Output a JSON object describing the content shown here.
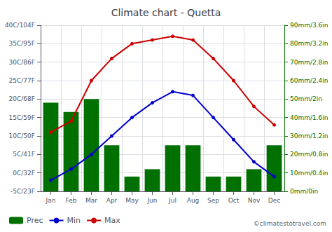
{
  "chart_data": {
    "type": "bar",
    "title": "Climate chart - Quetta",
    "categories": [
      "Jan",
      "Feb",
      "Mar",
      "Apr",
      "May",
      "Jun",
      "Jul",
      "Aug",
      "Sep",
      "Oct",
      "Nov",
      "Dec"
    ],
    "series": [
      {
        "name": "Prec",
        "type": "bar",
        "axis": "y2",
        "color": "#007000",
        "values": [
          48,
          43,
          50,
          25,
          8,
          12,
          25,
          25,
          8,
          8,
          12,
          25
        ]
      },
      {
        "name": "Min",
        "type": "line",
        "color": "#0000cc",
        "marker": "o",
        "values": [
          -2,
          1,
          5,
          10,
          15,
          19,
          22,
          21,
          15,
          9,
          3,
          -1
        ]
      },
      {
        "name": "Max",
        "type": "line",
        "color": "#cc0000",
        "marker": "o",
        "values": [
          11,
          14,
          25,
          31,
          35,
          36,
          37,
          36,
          31,
          25,
          18,
          13
        ]
      }
    ],
    "ylim": [
      -5,
      40
    ],
    "yticks": [
      {
        "value": -5,
        "label": "-5C/23F"
      },
      {
        "value": 0,
        "label": "0C/32F"
      },
      {
        "value": 5,
        "label": "5C/41F"
      },
      {
        "value": 10,
        "label": "10C/50F"
      },
      {
        "value": 15,
        "label": "15C/59F"
      },
      {
        "value": 20,
        "label": "20C/68F"
      },
      {
        "value": 25,
        "label": "25C/77F"
      },
      {
        "value": 30,
        "label": "30C/86F"
      },
      {
        "value": 35,
        "label": "35C/95F"
      },
      {
        "value": 40,
        "label": "40C/104F"
      }
    ],
    "y2lim": [
      0,
      90
    ],
    "y2ticks": [
      {
        "value": 0,
        "label": "0mm/0in"
      },
      {
        "value": 10,
        "label": "10mm/0.4in"
      },
      {
        "value": 20,
        "label": "20mm/0.8in"
      },
      {
        "value": 30,
        "label": "30mm/1.2in"
      },
      {
        "value": 40,
        "label": "40mm/1.6in"
      },
      {
        "value": 50,
        "label": "50mm/2in"
      },
      {
        "value": 60,
        "label": "60mm/2.4in"
      },
      {
        "value": 70,
        "label": "70mm/2.8in"
      },
      {
        "value": 80,
        "label": "80mm/3.2in"
      },
      {
        "value": 90,
        "label": "90mm/3.6in"
      }
    ],
    "grid": true,
    "legend": "lower left",
    "annotations": [
      "©climatestotravel.com"
    ]
  }
}
